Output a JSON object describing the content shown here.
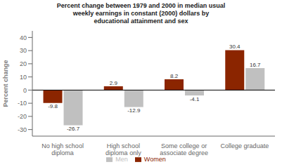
{
  "chart_data": {
    "type": "bar",
    "title": "Percent change between 1979 and 2000 in median usual\nweekly earnings in constant (2000) dollars by\neducational attainment and sex",
    "categories": [
      "No high school\ndiploma",
      "High school\ndiploma only",
      "Some college or\nassociate degree",
      "College graduate"
    ],
    "series": [
      {
        "name": "Women",
        "color": "#8B2500",
        "values": [
          -9.8,
          2.9,
          8.2,
          30.4
        ]
      },
      {
        "name": "Men",
        "color": "#C0C0C0",
        "values": [
          -26.7,
          -12.9,
          -4.1,
          16.7
        ]
      }
    ],
    "ylabel": "Percent change",
    "ylim": [
      -35,
      45
    ],
    "yticks": [
      -30,
      -20,
      -10,
      0,
      10,
      20,
      30,
      40
    ],
    "data_labels": true,
    "legend": "bottom",
    "grid": false
  }
}
